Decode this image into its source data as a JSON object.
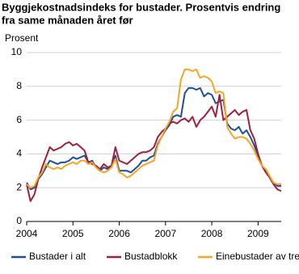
{
  "chart_data": {
    "type": "line",
    "title_lines": [
      "Byggjekostnadsindeks for bustader. Prosentvis endring",
      "fra same månaden året før"
    ],
    "y_label": "Prosent",
    "x": [
      2004,
      2004.083,
      2004.167,
      2004.25,
      2004.333,
      2004.417,
      2004.5,
      2004.583,
      2004.667,
      2004.75,
      2004.833,
      2004.917,
      2005,
      2005.083,
      2005.167,
      2005.25,
      2005.333,
      2005.417,
      2005.5,
      2005.583,
      2005.667,
      2005.75,
      2005.833,
      2005.917,
      2006,
      2006.083,
      2006.167,
      2006.25,
      2006.333,
      2006.417,
      2006.5,
      2006.583,
      2006.667,
      2006.75,
      2006.833,
      2006.917,
      2007,
      2007.083,
      2007.167,
      2007.25,
      2007.333,
      2007.417,
      2007.5,
      2007.583,
      2007.667,
      2007.75,
      2007.833,
      2007.917,
      2008,
      2008.083,
      2008.167,
      2008.25,
      2008.333,
      2008.417,
      2008.5,
      2008.583,
      2008.667,
      2008.75,
      2008.833,
      2008.917,
      2009,
      2009.083,
      2009.167,
      2009.25,
      2009.333,
      2009.417,
      2009.5
    ],
    "series": [
      {
        "name": "Bustader i alt",
        "color": "#1f4e9c",
        "values": [
          2.3,
          1.9,
          2.0,
          2.5,
          2.8,
          3.2,
          3.6,
          3.5,
          3.4,
          3.5,
          3.5,
          3.6,
          3.8,
          3.7,
          3.8,
          3.9,
          3.5,
          3.6,
          3.2,
          3.0,
          3.2,
          3.1,
          3.3,
          3.9,
          3.0,
          3.0,
          3.0,
          2.9,
          3.1,
          3.3,
          3.6,
          3.6,
          3.8,
          3.9,
          4.6,
          5.0,
          5.4,
          5.7,
          6.2,
          6.3,
          6.2,
          7.6,
          7.9,
          7.9,
          7.8,
          7.9,
          7.4,
          7.6,
          7.5,
          7.0,
          7.1,
          7.2,
          5.8,
          5.5,
          5.4,
          5.6,
          5.2,
          5.4,
          5.0,
          4.5,
          3.9,
          3.3,
          3.0,
          2.6,
          2.3,
          2.1,
          2.1
        ]
      },
      {
        "name": "Bustadblokk",
        "color": "#a0203c",
        "values": [
          2.2,
          1.2,
          1.6,
          2.5,
          3.2,
          3.8,
          4.4,
          4.2,
          4.3,
          4.4,
          4.6,
          4.7,
          4.5,
          4.6,
          4.4,
          4.2,
          3.5,
          3.4,
          3.3,
          3.1,
          3.4,
          3.2,
          3.3,
          4.4,
          3.6,
          3.5,
          3.4,
          3.6,
          3.8,
          4.0,
          4.1,
          4.1,
          4.2,
          4.4,
          5.0,
          5.3,
          5.5,
          5.8,
          5.9,
          5.8,
          6.0,
          6.1,
          5.9,
          6.2,
          5.6,
          6.0,
          6.2,
          6.5,
          6.8,
          6.2,
          7.5,
          6.0,
          6.2,
          6.4,
          6.6,
          6.3,
          6.5,
          6.6,
          5.4,
          4.9,
          4.0,
          3.3,
          2.9,
          2.6,
          2.2,
          1.9,
          1.8
        ]
      },
      {
        "name": "Einebustader av tre",
        "color": "#f5a623",
        "values": [
          2.2,
          2.0,
          2.1,
          2.6,
          2.9,
          3.4,
          3.2,
          3.1,
          3.2,
          3.1,
          3.3,
          3.4,
          3.5,
          3.4,
          3.6,
          3.6,
          3.4,
          3.5,
          3.2,
          3.0,
          2.9,
          3.0,
          3.2,
          3.7,
          2.9,
          2.8,
          2.6,
          2.7,
          2.9,
          3.1,
          3.3,
          3.4,
          3.5,
          3.6,
          4.5,
          5.0,
          5.5,
          5.9,
          6.5,
          6.7,
          8.4,
          9.0,
          9.0,
          8.9,
          9.0,
          8.5,
          8.6,
          8.5,
          8.3,
          7.6,
          7.7,
          7.6,
          5.6,
          5.2,
          4.9,
          5.0,
          5.0,
          4.9,
          4.6,
          4.2,
          3.7,
          3.3,
          3.1,
          2.7,
          2.3,
          2.2,
          2.2
        ]
      }
    ],
    "xlim": [
      2004,
      2009.5
    ],
    "xticks": [
      2004,
      2005,
      2006,
      2007,
      2008,
      2009
    ],
    "ylim": [
      0,
      10
    ],
    "yticks": [
      0,
      2,
      4,
      6,
      8,
      10
    ],
    "grid": true
  }
}
